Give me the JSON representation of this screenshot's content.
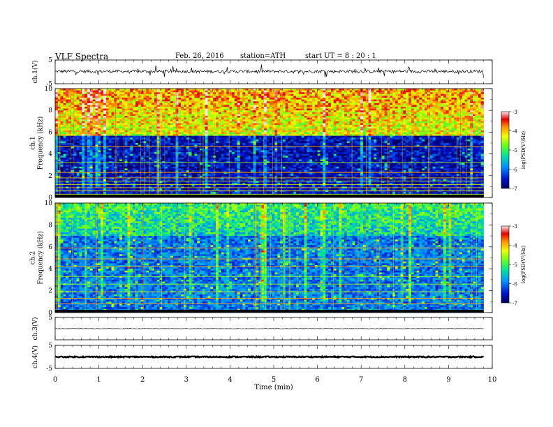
{
  "header": {
    "title": "VLF  Spectra",
    "date": "Feb. 26, 2016",
    "station": "station=ATH",
    "start_ut": "start  UT  =   8  : 20 : 1"
  },
  "chart_data": [
    {
      "type": "line",
      "panel": "ch.1 waveform",
      "ylabel": "ch.1(V)",
      "ylim": [
        -5,
        5
      ],
      "yticks": [
        "5",
        "-5"
      ],
      "baseline": 0.2,
      "noise_amplitude": 0.6,
      "spike_amplitude": 2.6,
      "color": "#000000"
    },
    {
      "type": "heatmap",
      "panel": "ch.1 spectrogram",
      "ylabel": "ch.1\nFrequency  (kHz)",
      "ylim": [
        0,
        10
      ],
      "yticks": [
        "0",
        "2",
        "4",
        "6",
        "8",
        "10"
      ],
      "xlim": [
        0,
        9.8
      ],
      "high_band_floor_khz": 5.6,
      "high_band_level": -4.4,
      "low_band_level": -6.6,
      "line_freqs_khz": [
        0.3,
        0.6,
        0.9,
        1.2,
        1.5,
        1.8,
        2.3,
        3.2,
        4.7
      ],
      "colorbar": {
        "label": "log(PSD(V²/Hz)",
        "range": [
          -7,
          -3
        ],
        "ticks": [
          "-3",
          "-4",
          "-5",
          "-6",
          "-7"
        ]
      }
    },
    {
      "type": "heatmap",
      "panel": "ch.2 spectrogram",
      "ylabel": "ch.2\nFrequency  (kHz)",
      "ylim": [
        0,
        10
      ],
      "yticks": [
        "0",
        "2",
        "4",
        "6",
        "8",
        "10"
      ],
      "xlim": [
        0,
        9.8
      ],
      "high_band_floor_khz": 7.0,
      "high_band_level": -5.4,
      "low_band_level": -6.0,
      "line_freqs_khz": [
        0.8,
        1.3,
        1.9,
        2.6,
        3.3,
        4.2,
        4.9,
        5.9
      ],
      "colorbar": {
        "label": "log(PSD(V²/Hz)",
        "range": [
          -7,
          -3
        ],
        "ticks": [
          "-3",
          "-4",
          "-5",
          "-6",
          "-7"
        ]
      }
    },
    {
      "type": "line",
      "panel": "ch.3 waveform",
      "ylabel": "ch.3(V)",
      "ylim": [
        -5,
        5
      ],
      "yticks": [
        "5"
      ],
      "baseline": 0,
      "noise_amplitude": 0.15,
      "spike_amplitude": 0,
      "color": "#000000"
    },
    {
      "type": "line",
      "panel": "ch.4 waveform",
      "ylabel": "ch.4(V)",
      "ylim": [
        -5,
        5
      ],
      "yticks": [
        "5",
        "-5"
      ],
      "baseline": 0,
      "noise_amplitude": 0.25,
      "spike_amplitude": 0,
      "color": "#000000"
    }
  ],
  "x_axis": {
    "label": "Time  (min)",
    "range": [
      0,
      10
    ],
    "ticks": [
      "0",
      "1",
      "2",
      "3",
      "4",
      "5",
      "6",
      "7",
      "8",
      "9",
      "10"
    ],
    "data_end": 9.8
  }
}
